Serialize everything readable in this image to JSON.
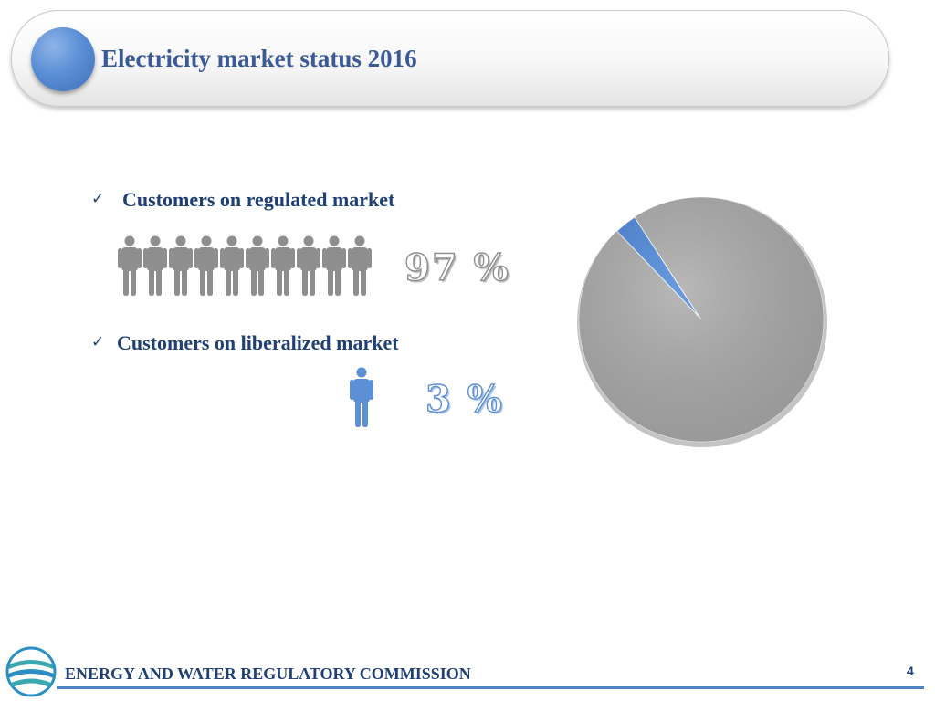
{
  "slide": {
    "title": "Electricity market status 2016",
    "page_number": "4"
  },
  "bullets": [
    {
      "label": "Customers on regulated market",
      "percent_text": "97 %",
      "icon": "person-icon",
      "person_count": 10,
      "color": "#8e8e8e"
    },
    {
      "label": "Customers on liberalized market",
      "percent_text": "3 %",
      "icon": "person-icon",
      "person_count": 1,
      "color": "#5b8fd6"
    }
  ],
  "footer": {
    "organization": "ENERGY AND WATER REGULATORY COMMISSION",
    "logo": "ewrc-logo"
  },
  "chart_data": {
    "type": "pie",
    "title": "",
    "series": [
      {
        "categories": [
          "Regulated market",
          "Liberalized market"
        ],
        "values": [
          97,
          3
        ],
        "colors": [
          "#a9a9a9",
          "#4a86d8"
        ]
      }
    ]
  }
}
